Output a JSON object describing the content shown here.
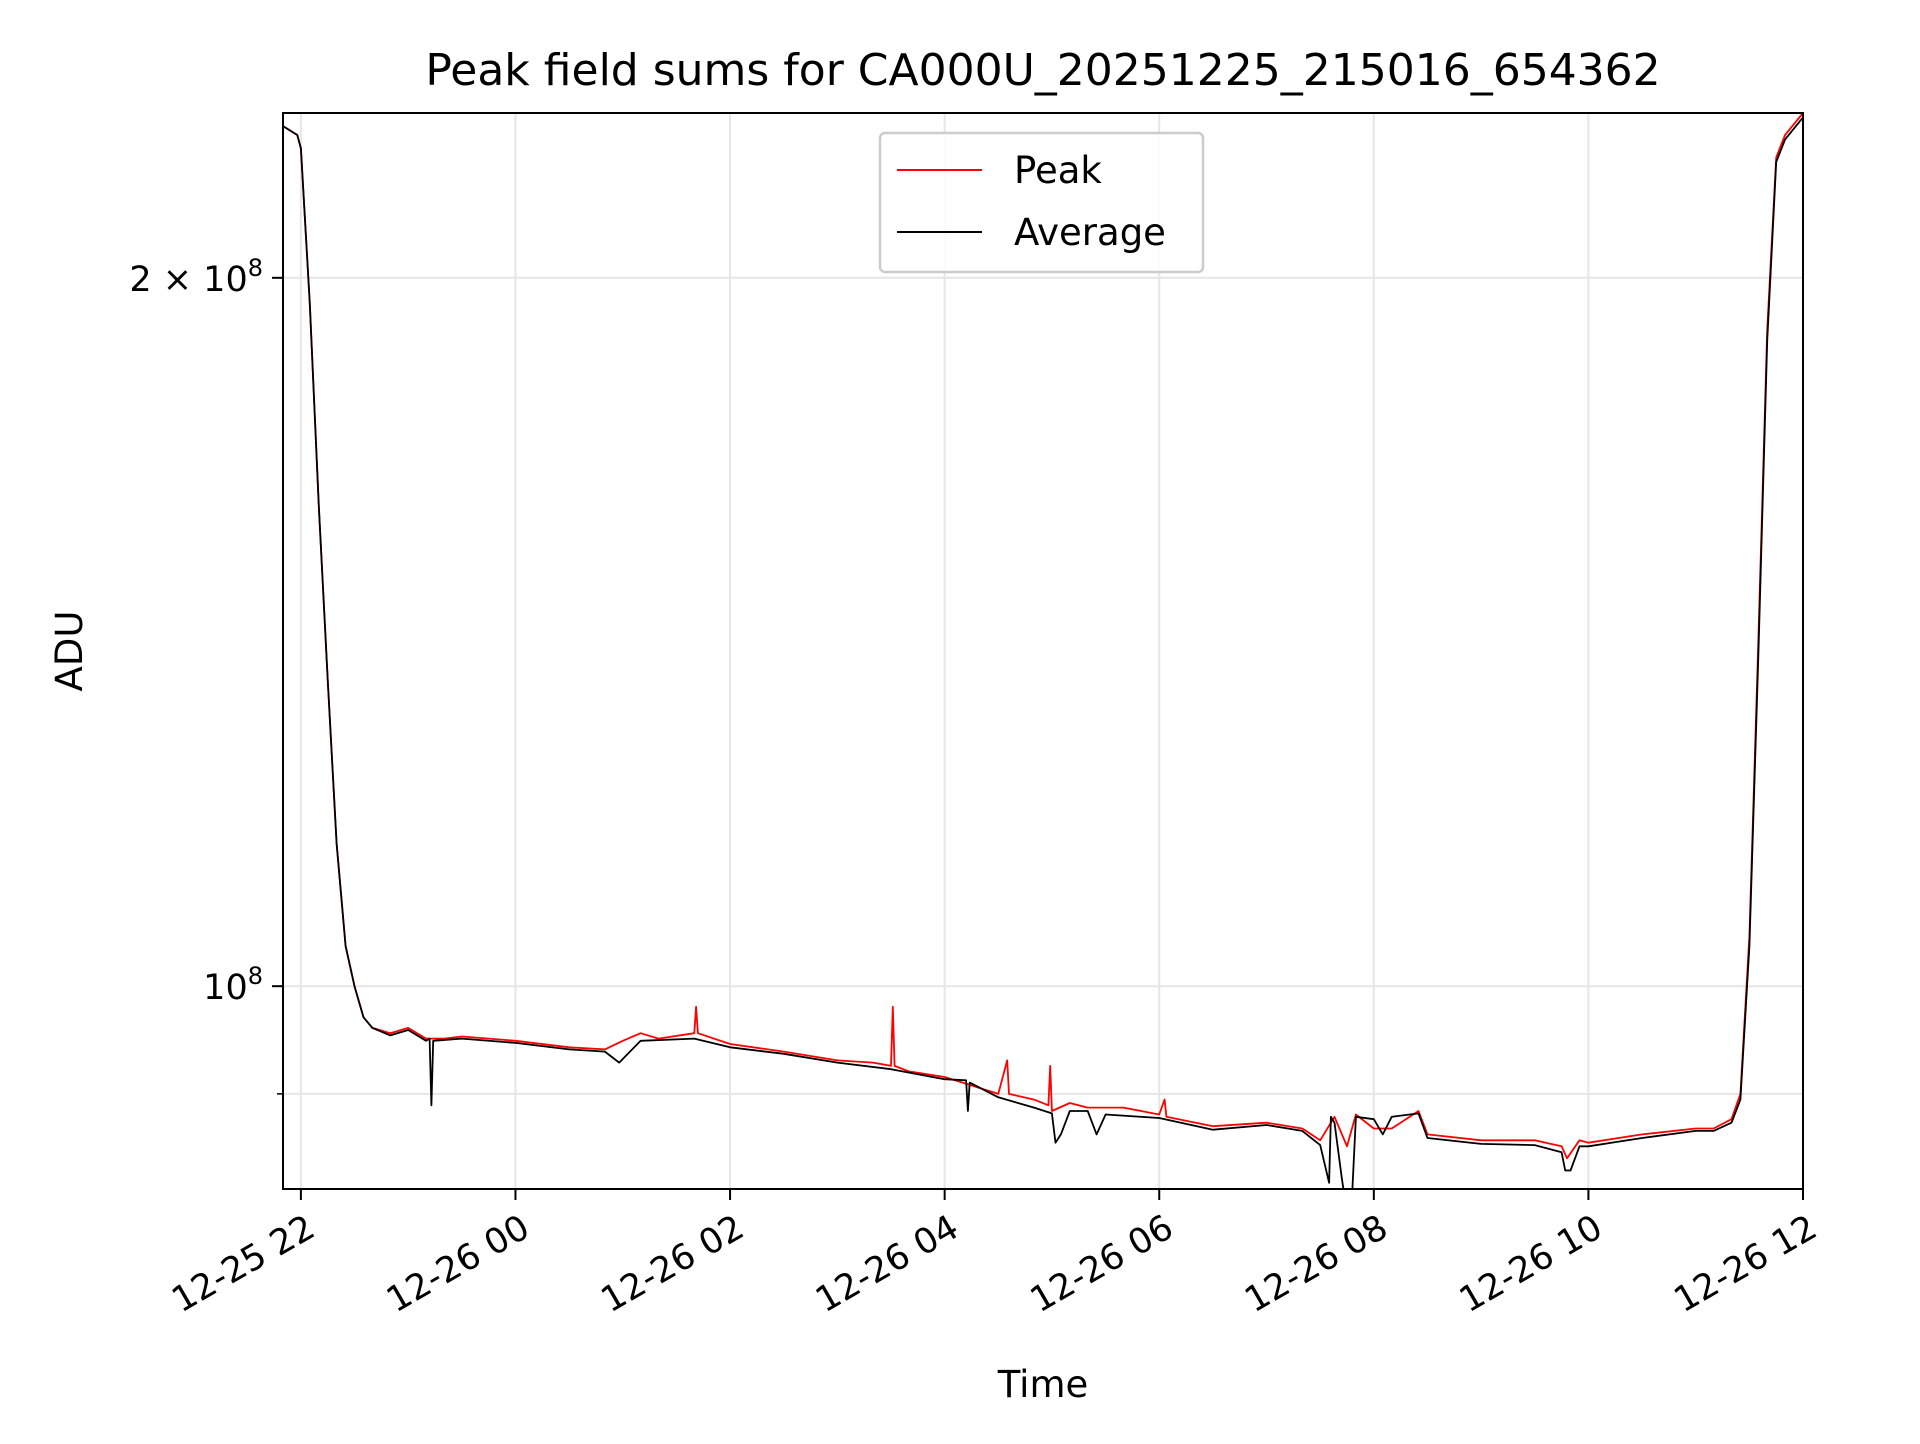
{
  "chart_data": {
    "type": "line",
    "title": "Peak field sums for CA000U_20251225_215016_654362",
    "xlabel": "Time",
    "ylabel": "ADU",
    "yscale": "log",
    "grid": true,
    "legend_position": "upper center",
    "xlim": [
      "2025-12-25 21:50",
      "2025-12-26 12:00"
    ],
    "ylim": [
      82000000,
      235000000
    ],
    "x_tick_values": [
      "2025-12-25 22:00",
      "2025-12-26 00:00",
      "2025-12-26 02:00",
      "2025-12-26 04:00",
      "2025-12-26 06:00",
      "2025-12-26 08:00",
      "2025-12-26 10:00",
      "2025-12-26 12:00"
    ],
    "x_tick_labels": [
      "12-25 22",
      "12-26 00",
      "12-26 02",
      "12-26 04",
      "12-26 06",
      "12-26 08",
      "12-26 10",
      "12-26 12"
    ],
    "y_major_ticks": [
      {
        "value": 100000000,
        "label_base": "10",
        "label_exp": "8"
      },
      {
        "value": 200000000,
        "label_base": "2 × 10",
        "label_exp": "8"
      }
    ],
    "y_minor_ticks": [
      90000000
    ],
    "series": [
      {
        "name": "Peak",
        "color": "#ff0000",
        "x": [
          "2025-12-25 21:50",
          "2025-12-25 21:58",
          "2025-12-25 22:00",
          "2025-12-25 22:05",
          "2025-12-25 22:10",
          "2025-12-25 22:15",
          "2025-12-25 22:20",
          "2025-12-25 22:25",
          "2025-12-25 22:30",
          "2025-12-25 22:35",
          "2025-12-25 22:40",
          "2025-12-25 22:50",
          "2025-12-25 23:00",
          "2025-12-25 23:10",
          "2025-12-25 23:20",
          "2025-12-25 23:30",
          "2025-12-26 00:00",
          "2025-12-26 00:30",
          "2025-12-26 00:50",
          "2025-12-26 01:00",
          "2025-12-26 01:10",
          "2025-12-26 01:20",
          "2025-12-26 01:40",
          "2025-12-26 01:41",
          "2025-12-26 01:42",
          "2025-12-26 02:00",
          "2025-12-26 02:30",
          "2025-12-26 03:00",
          "2025-12-26 03:20",
          "2025-12-26 03:30",
          "2025-12-26 03:31",
          "2025-12-26 03:32",
          "2025-12-26 03:40",
          "2025-12-26 04:00",
          "2025-12-26 04:30",
          "2025-12-26 04:35",
          "2025-12-26 04:36",
          "2025-12-26 04:50",
          "2025-12-26 04:58",
          "2025-12-26 04:59",
          "2025-12-26 05:00",
          "2025-12-26 05:10",
          "2025-12-26 05:20",
          "2025-12-26 05:40",
          "2025-12-26 06:00",
          "2025-12-26 06:03",
          "2025-12-26 06:04",
          "2025-12-26 06:30",
          "2025-12-26 07:00",
          "2025-12-26 07:20",
          "2025-12-26 07:30",
          "2025-12-26 07:38",
          "2025-12-26 07:45",
          "2025-12-26 07:50",
          "2025-12-26 08:00",
          "2025-12-26 08:10",
          "2025-12-26 08:25",
          "2025-12-26 08:30",
          "2025-12-26 09:00",
          "2025-12-26 09:30",
          "2025-12-26 09:45",
          "2025-12-26 09:48",
          "2025-12-26 09:55",
          "2025-12-26 10:00",
          "2025-12-26 10:30",
          "2025-12-26 11:00",
          "2025-12-26 11:10",
          "2025-12-26 11:20",
          "2025-12-26 11:25",
          "2025-12-26 11:30",
          "2025-12-26 11:35",
          "2025-12-26 11:40",
          "2025-12-26 11:45",
          "2025-12-26 11:50",
          "2025-12-26 12:00"
        ],
        "values": [
          232000000,
          230000000,
          227000000,
          195000000,
          160000000,
          135000000,
          115000000,
          104000000,
          100000000,
          97000000,
          96000000,
          95500000,
          96000000,
          95000000,
          95000000,
          95200000,
          94800000,
          94200000,
          94000000,
          94800000,
          95500000,
          95000000,
          95500000,
          98000000,
          95500000,
          94500000,
          93800000,
          93000000,
          92800000,
          92500000,
          98000000,
          92500000,
          92000000,
          91500000,
          90000000,
          93000000,
          90000000,
          89500000,
          89000000,
          92500000,
          88500000,
          89200000,
          88800000,
          88800000,
          88200000,
          89500000,
          88000000,
          87200000,
          87500000,
          87000000,
          86000000,
          88000000,
          85500000,
          88200000,
          87000000,
          87000000,
          88500000,
          86500000,
          86000000,
          86000000,
          85500000,
          84500000,
          86000000,
          85800000,
          86500000,
          87000000,
          87000000,
          87800000,
          90000000,
          105000000,
          140000000,
          190000000,
          225000000,
          230000000,
          235000000
        ]
      },
      {
        "name": "Average",
        "color": "#000000",
        "x": [
          "2025-12-25 21:50",
          "2025-12-25 21:58",
          "2025-12-25 22:00",
          "2025-12-25 22:05",
          "2025-12-25 22:10",
          "2025-12-25 22:15",
          "2025-12-25 22:20",
          "2025-12-25 22:25",
          "2025-12-25 22:30",
          "2025-12-25 22:35",
          "2025-12-25 22:40",
          "2025-12-25 22:50",
          "2025-12-25 23:00",
          "2025-12-25 23:10",
          "2025-12-25 23:12",
          "2025-12-25 23:13",
          "2025-12-25 23:14",
          "2025-12-25 23:30",
          "2025-12-26 00:00",
          "2025-12-26 00:30",
          "2025-12-26 00:50",
          "2025-12-26 00:58",
          "2025-12-26 01:10",
          "2025-12-26 01:40",
          "2025-12-26 02:00",
          "2025-12-26 02:30",
          "2025-12-26 03:00",
          "2025-12-26 03:30",
          "2025-12-26 04:00",
          "2025-12-26 04:12",
          "2025-12-26 04:13",
          "2025-12-26 04:14",
          "2025-12-26 04:30",
          "2025-12-26 04:50",
          "2025-12-26 05:00",
          "2025-12-26 05:02",
          "2025-12-26 05:05",
          "2025-12-26 05:10",
          "2025-12-26 05:20",
          "2025-12-26 05:25",
          "2025-12-26 05:30",
          "2025-12-26 06:00",
          "2025-12-26 06:30",
          "2025-12-26 07:00",
          "2025-12-26 07:20",
          "2025-12-26 07:30",
          "2025-12-26 07:35",
          "2025-12-26 07:36",
          "2025-12-26 07:38",
          "2025-12-26 07:42",
          "2025-12-26 07:43",
          "2025-12-26 07:48",
          "2025-12-26 07:50",
          "2025-12-26 08:00",
          "2025-12-26 08:05",
          "2025-12-26 08:10",
          "2025-12-26 08:25",
          "2025-12-26 08:30",
          "2025-12-26 09:00",
          "2025-12-26 09:30",
          "2025-12-26 09:45",
          "2025-12-26 09:47",
          "2025-12-26 09:50",
          "2025-12-26 09:55",
          "2025-12-26 10:00",
          "2025-12-26 10:30",
          "2025-12-26 11:00",
          "2025-12-26 11:10",
          "2025-12-26 11:20",
          "2025-12-26 11:25",
          "2025-12-26 11:30",
          "2025-12-26 11:35",
          "2025-12-26 11:40",
          "2025-12-26 11:45",
          "2025-12-26 11:50",
          "2025-12-26 12:00"
        ],
        "values": [
          232000000,
          230000000,
          227000000,
          195000000,
          160000000,
          135000000,
          115000000,
          104000000,
          100000000,
          97000000,
          96000000,
          95300000,
          95800000,
          94800000,
          95000000,
          89000000,
          94800000,
          95000000,
          94600000,
          94000000,
          93800000,
          92800000,
          94800000,
          95000000,
          94200000,
          93600000,
          92800000,
          92200000,
          91300000,
          91200000,
          88500000,
          91000000,
          89700000,
          88800000,
          88300000,
          85800000,
          86500000,
          88500000,
          88500000,
          86500000,
          88200000,
          87900000,
          86900000,
          87300000,
          86800000,
          85600000,
          82500000,
          88000000,
          87500000,
          83000000,
          82000000,
          82000000,
          88000000,
          87800000,
          86500000,
          88000000,
          88300000,
          86200000,
          85700000,
          85600000,
          85000000,
          83500000,
          83500000,
          85500000,
          85500000,
          86200000,
          86800000,
          86800000,
          87500000,
          89500000,
          104000000,
          138000000,
          188000000,
          224000000,
          229000000,
          234000000
        ]
      }
    ]
  }
}
